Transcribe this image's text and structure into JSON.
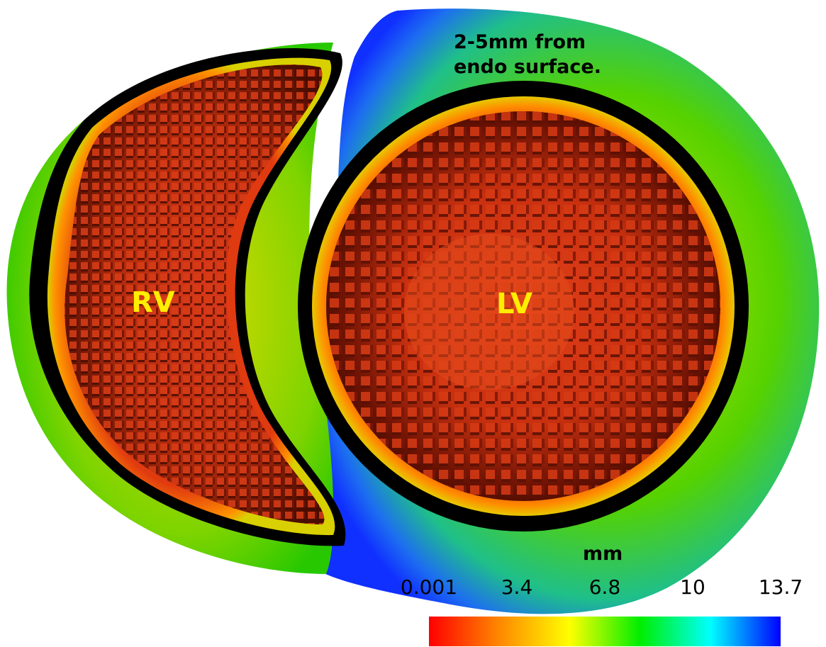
{
  "labels": {
    "rv": "RV",
    "lv": "LV",
    "note_line1": "2-5mm from",
    "note_line2": "endo surface."
  },
  "colorbar": {
    "unit": "mm",
    "ticks": [
      "0.001",
      "3.4",
      "6.8",
      "10",
      "13.7"
    ],
    "min": 0.001,
    "max": 13.7,
    "colors": [
      "#ff0000",
      "#ff8800",
      "#ffff00",
      "#00ee00",
      "#00ffff",
      "#0000ff"
    ]
  },
  "palette": {
    "outer_blue": "#1a3cff",
    "mid_green": "#22cc22",
    "yellow_band": "#dddd00",
    "inner_red": "#e03010",
    "dark_red": "#3a0800",
    "black_band": "#000000"
  }
}
